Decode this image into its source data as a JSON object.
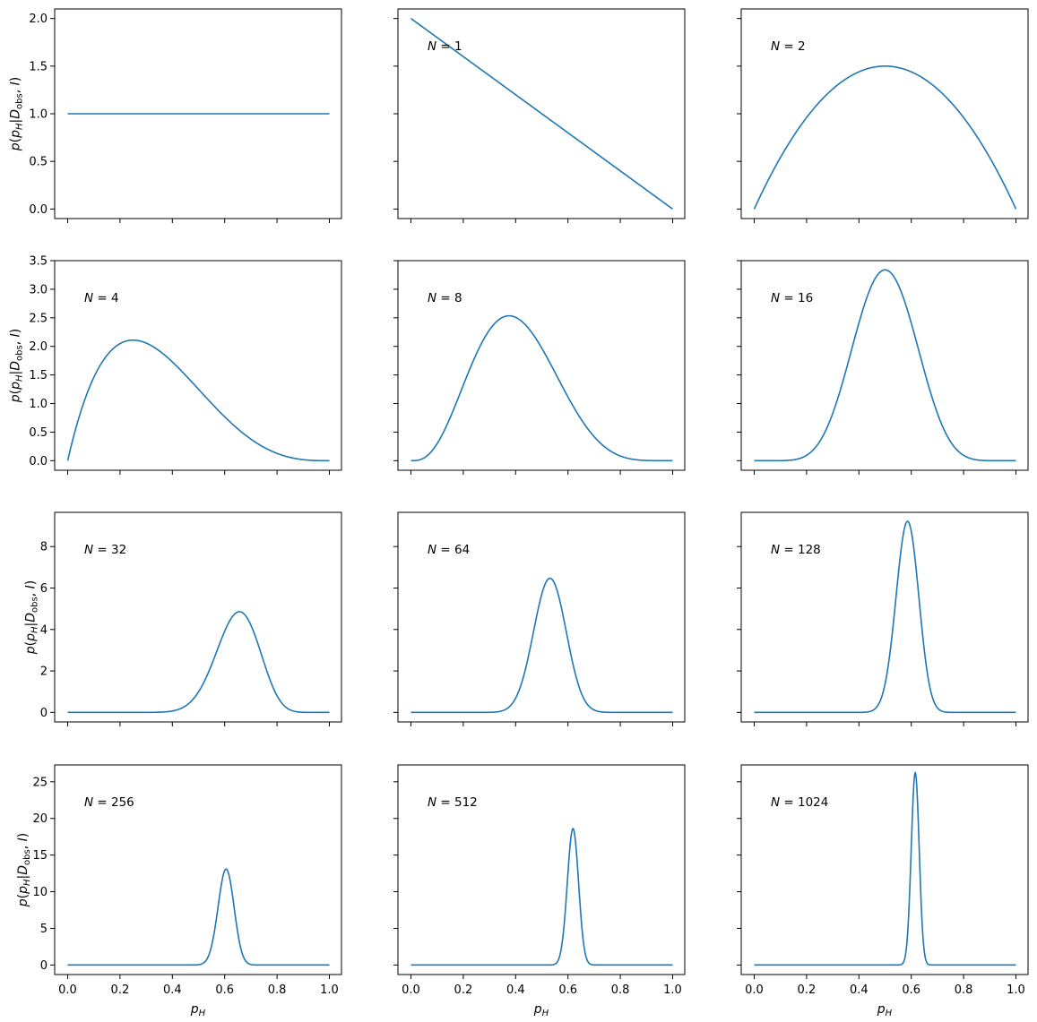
{
  "figure": {
    "xlabel_main": "p",
    "xlabel_sub": "H",
    "ylabel": {
      "p1": "p",
      "paren_open": "(",
      "p2": "p",
      "p2_sub": "H",
      "bar": "|",
      "D": "D",
      "D_sub": "obs",
      "comma": ", ",
      "I": "I",
      "paren_close": ")"
    },
    "line_color": "#1f77b4"
  },
  "chart_data": [
    {
      "type": "line",
      "panel": 1,
      "annotation": "",
      "formula": "beta",
      "heads": 0,
      "tails": 0,
      "xlim": [
        0,
        1
      ],
      "ylim": [
        -0.1,
        2.1
      ],
      "yticks": [
        0.0,
        0.5,
        1.0,
        1.5,
        2.0
      ],
      "ytick_labels": [
        "0.0",
        "0.5",
        "1.0",
        "1.5",
        "2.0"
      ]
    },
    {
      "type": "line",
      "panel": 2,
      "annotation": "N = 1",
      "formula": "beta",
      "heads": 0,
      "tails": 1,
      "xlim": [
        0,
        1
      ],
      "ylim": [
        -0.1,
        2.1
      ],
      "yticks": [
        0.0,
        0.5,
        1.0,
        1.5,
        2.0
      ],
      "ytick_labels": [
        "",
        "",
        "",
        "",
        ""
      ]
    },
    {
      "type": "line",
      "panel": 3,
      "annotation": "N = 2",
      "formula": "beta",
      "heads": 1,
      "tails": 1,
      "xlim": [
        0,
        1
      ],
      "ylim": [
        -0.1,
        2.1
      ],
      "yticks": [
        0.0,
        0.5,
        1.0,
        1.5,
        2.0
      ],
      "ytick_labels": [
        "",
        "",
        "",
        "",
        ""
      ]
    },
    {
      "type": "line",
      "panel": 4,
      "annotation": "N = 4",
      "formula": "beta",
      "heads": 1,
      "tails": 3,
      "xlim": [
        0,
        1
      ],
      "ylim": [
        -0.167,
        3.5
      ],
      "yticks": [
        0.0,
        0.5,
        1.0,
        1.5,
        2.0,
        2.5,
        3.0,
        3.5
      ],
      "ytick_labels": [
        "0.0",
        "0.5",
        "1.0",
        "1.5",
        "2.0",
        "2.5",
        "3.0",
        "3.5"
      ]
    },
    {
      "type": "line",
      "panel": 5,
      "annotation": "N = 8",
      "formula": "beta",
      "heads": 3,
      "tails": 5,
      "xlim": [
        0,
        1
      ],
      "ylim": [
        -0.167,
        3.5
      ],
      "yticks": [
        0.0,
        0.5,
        1.0,
        1.5,
        2.0,
        2.5,
        3.0,
        3.5
      ],
      "ytick_labels": [
        "",
        "",
        "",
        "",
        "",
        "",
        "",
        ""
      ]
    },
    {
      "type": "line",
      "panel": 6,
      "annotation": "N = 16",
      "formula": "beta",
      "heads": 8,
      "tails": 8,
      "xlim": [
        0,
        1
      ],
      "ylim": [
        -0.167,
        3.5
      ],
      "yticks": [
        0.0,
        0.5,
        1.0,
        1.5,
        2.0,
        2.5,
        3.0,
        3.5
      ],
      "ytick_labels": [
        "",
        "",
        "",
        "",
        "",
        "",
        "",
        ""
      ]
    },
    {
      "type": "line",
      "panel": 7,
      "annotation": "N = 32",
      "formula": "beta",
      "heads": 21,
      "tails": 11,
      "xlim": [
        0,
        1
      ],
      "ylim": [
        -0.46,
        9.65
      ],
      "yticks": [
        0,
        2,
        4,
        6,
        8
      ],
      "ytick_labels": [
        "0",
        "2",
        "4",
        "6",
        "8"
      ]
    },
    {
      "type": "line",
      "panel": 8,
      "annotation": "N = 64",
      "formula": "beta",
      "heads": 34,
      "tails": 30,
      "xlim": [
        0,
        1
      ],
      "ylim": [
        -0.46,
        9.65
      ],
      "yticks": [
        0,
        2,
        4,
        6,
        8
      ],
      "ytick_labels": [
        "",
        "",
        "",
        "",
        ""
      ]
    },
    {
      "type": "line",
      "panel": 9,
      "annotation": "N = 128",
      "formula": "beta",
      "heads": 75,
      "tails": 53,
      "xlim": [
        0,
        1
      ],
      "ylim": [
        -0.46,
        9.65
      ],
      "yticks": [
        0,
        2,
        4,
        6,
        8
      ],
      "ytick_labels": [
        "",
        "",
        "",
        "",
        ""
      ]
    },
    {
      "type": "line",
      "panel": 10,
      "annotation": "N = 256",
      "formula": "beta",
      "heads": 155,
      "tails": 101,
      "xlim": [
        0,
        1
      ],
      "ylim": [
        -1.3,
        27.3
      ],
      "yticks": [
        0,
        5,
        10,
        15,
        20,
        25
      ],
      "ytick_labels": [
        "0",
        "5",
        "10",
        "15",
        "20",
        "25"
      ],
      "xticks": [
        0.0,
        0.2,
        0.4,
        0.6,
        0.8,
        1.0
      ],
      "xtick_labels": [
        "0.0",
        "0.2",
        "0.4",
        "0.6",
        "0.8",
        "1.0"
      ]
    },
    {
      "type": "line",
      "panel": 11,
      "annotation": "N = 512",
      "formula": "beta",
      "heads": 317,
      "tails": 195,
      "xlim": [
        0,
        1
      ],
      "ylim": [
        -1.3,
        27.3
      ],
      "yticks": [
        0,
        5,
        10,
        15,
        20,
        25
      ],
      "ytick_labels": [
        "",
        "",
        "",
        "",
        "",
        ""
      ],
      "xticks": [
        0.0,
        0.2,
        0.4,
        0.6,
        0.8,
        1.0
      ],
      "xtick_labels": [
        "0.0",
        "0.2",
        "0.4",
        "0.6",
        "0.8",
        "1.0"
      ]
    },
    {
      "type": "line",
      "panel": 12,
      "annotation": "N = 1024",
      "formula": "beta",
      "heads": 630,
      "tails": 394,
      "xlim": [
        0,
        1
      ],
      "ylim": [
        -1.3,
        27.3
      ],
      "yticks": [
        0,
        5,
        10,
        15,
        20,
        25
      ],
      "ytick_labels": [
        "",
        "",
        "",
        "",
        "",
        ""
      ],
      "xticks": [
        0.0,
        0.2,
        0.4,
        0.6,
        0.8,
        1.0
      ],
      "xtick_labels": [
        "0.0",
        "0.2",
        "0.4",
        "0.6",
        "0.8",
        "1.0"
      ]
    }
  ]
}
